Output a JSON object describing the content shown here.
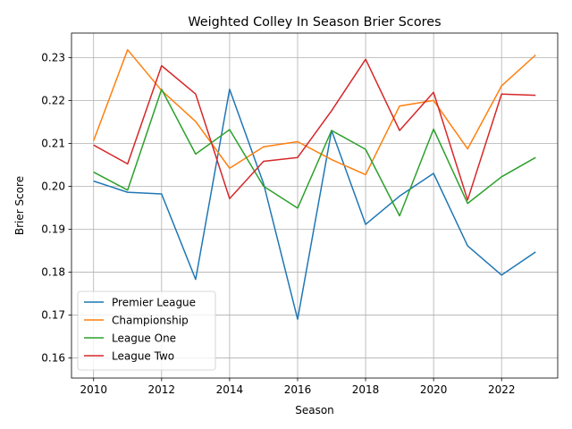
{
  "chart_data": {
    "type": "line",
    "title": "Weighted Colley In Season Brier Scores",
    "xlabel": "Season",
    "ylabel": "Brier Score",
    "x": [
      2010,
      2011,
      2012,
      2013,
      2014,
      2015,
      2016,
      2017,
      2018,
      2019,
      2020,
      2021,
      2022,
      2023
    ],
    "xlim": [
      2009.35,
      2023.65
    ],
    "ylim": [
      0.1553,
      0.2357
    ],
    "xticks": [
      2010,
      2012,
      2014,
      2016,
      2018,
      2020,
      2022
    ],
    "yticks": [
      0.16,
      0.17,
      0.18,
      0.19,
      0.2,
      0.21,
      0.22,
      0.23
    ],
    "ytick_labels": [
      "0.16",
      "0.17",
      "0.18",
      "0.19",
      "0.20",
      "0.21",
      "0.22",
      "0.23"
    ],
    "grid": true,
    "legend_position": "lower-left",
    "series": [
      {
        "name": "Premier League",
        "color": "#1f77b4",
        "values": [
          0.2012,
          0.1986,
          0.1982,
          0.1783,
          0.2226,
          0.2006,
          0.169,
          0.213,
          0.1911,
          0.1977,
          0.203,
          0.1861,
          0.1793,
          0.1847
        ]
      },
      {
        "name": "Championship",
        "color": "#ff7f0e",
        "values": [
          0.2106,
          0.2318,
          0.2223,
          0.2151,
          0.2042,
          0.2092,
          0.2104,
          0.2062,
          0.2027,
          0.2187,
          0.22,
          0.2087,
          0.2234,
          0.2306
        ]
      },
      {
        "name": "League One",
        "color": "#2ca02c",
        "values": [
          0.2033,
          0.1991,
          0.2226,
          0.2075,
          0.2132,
          0.2,
          0.1949,
          0.213,
          0.2086,
          0.1931,
          0.2133,
          0.196,
          0.2022,
          0.2067
        ]
      },
      {
        "name": "League Two",
        "color": "#d62728",
        "values": [
          0.2096,
          0.2052,
          0.2281,
          0.2215,
          0.1971,
          0.2058,
          0.2067,
          0.2176,
          0.2296,
          0.213,
          0.2219,
          0.1968,
          0.2215,
          0.2212
        ]
      }
    ]
  }
}
